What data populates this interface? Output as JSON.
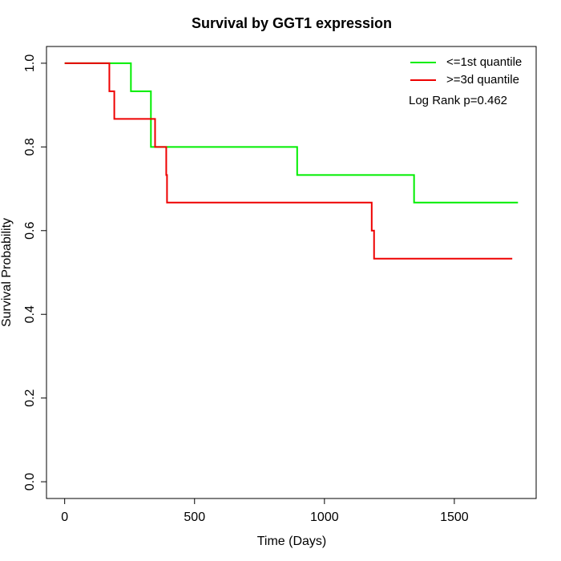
{
  "chart_data": {
    "type": "step",
    "title": "Survival by GGT1 expression",
    "x_label": "Time (Days)",
    "y_label": "Survival Probability",
    "annotation": "Log Rank p=0.462",
    "xlim": [
      -70,
      1815
    ],
    "ylim": [
      -0.04,
      1.04
    ],
    "xticks": [
      0,
      500,
      1000,
      1500
    ],
    "yticks": [
      {
        "value": 0,
        "label": "0.0"
      },
      {
        "value": 0.2,
        "label": "0.2"
      },
      {
        "value": 0.4,
        "label": "0.4"
      },
      {
        "value": 0.6,
        "label": "0.6"
      },
      {
        "value": 0.8,
        "label": "0.8"
      },
      {
        "value": 1,
        "label": "1.0"
      }
    ],
    "legend": "topright",
    "series": [
      {
        "name": "<=1st quantile",
        "color": "#00ee00",
        "x": [
          0,
          255,
          332,
          895,
          1345,
          1745
        ],
        "values": [
          1,
          0.933,
          0.8,
          0.733,
          0.667,
          0.667
        ]
      },
      {
        "name": ">=3d quantile",
        "color": "#ee0000",
        "x": [
          0,
          172,
          191,
          348,
          391,
          394,
          1182,
          1191,
          1723
        ],
        "values": [
          1,
          0.933,
          0.867,
          0.8,
          0.733,
          0.667,
          0.6,
          0.533,
          0.533
        ]
      }
    ]
  }
}
